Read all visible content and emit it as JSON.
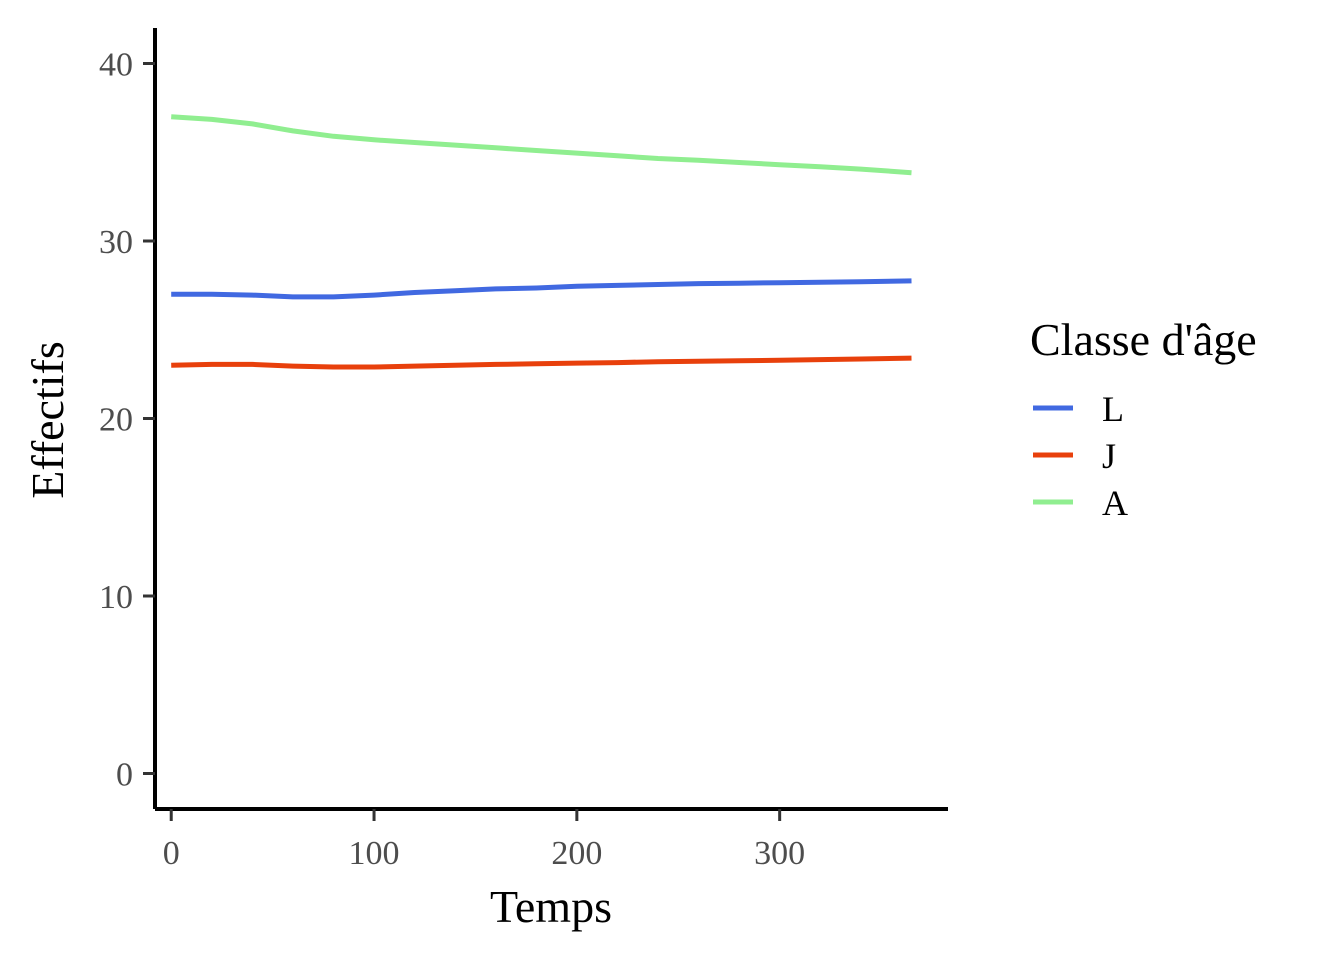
{
  "chart_data": {
    "type": "line",
    "xlabel": "Temps",
    "ylabel": "Effectifs",
    "xlim": [
      -8,
      383
    ],
    "ylim": [
      -2,
      42
    ],
    "xticks": [
      0,
      100,
      200,
      300
    ],
    "yticks": [
      0,
      10,
      20,
      30,
      40
    ],
    "x_tick_labels": [
      "0",
      "100",
      "200",
      "300"
    ],
    "y_tick_labels": [
      "0",
      "10",
      "20",
      "30",
      "40"
    ],
    "grid": false,
    "legend": {
      "title": "Classe d'âge",
      "position": "right"
    },
    "x": [
      0,
      20,
      40,
      60,
      80,
      100,
      120,
      140,
      160,
      180,
      200,
      220,
      240,
      260,
      280,
      300,
      320,
      340,
      365
    ],
    "series": [
      {
        "name": "L",
        "color": "#4169E1",
        "values": [
          27.0,
          27.0,
          26.95,
          26.85,
          26.85,
          26.95,
          27.1,
          27.2,
          27.3,
          27.35,
          27.45,
          27.5,
          27.55,
          27.6,
          27.62,
          27.65,
          27.68,
          27.7,
          27.75
        ]
      },
      {
        "name": "J",
        "color": "#E8400C",
        "values": [
          23.0,
          23.05,
          23.05,
          22.95,
          22.9,
          22.9,
          22.95,
          23.0,
          23.05,
          23.08,
          23.12,
          23.15,
          23.2,
          23.22,
          23.25,
          23.28,
          23.32,
          23.35,
          23.4
        ]
      },
      {
        "name": "A",
        "color": "#90EE90",
        "values": [
          37.0,
          36.85,
          36.6,
          36.2,
          35.9,
          35.7,
          35.55,
          35.4,
          35.25,
          35.1,
          34.95,
          34.8,
          34.65,
          34.55,
          34.42,
          34.3,
          34.18,
          34.05,
          33.85
        ]
      }
    ]
  }
}
